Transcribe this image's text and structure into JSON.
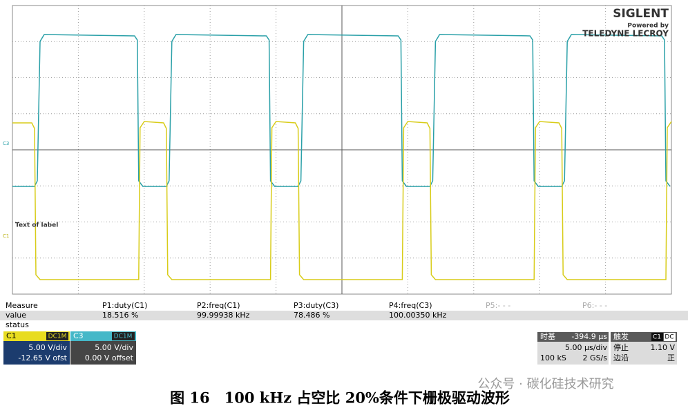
{
  "logo": {
    "brand": "SIGLENT",
    "powered": "Powered by",
    "partner": "TELEDYNE LECROY"
  },
  "markers": {
    "c3": "C3",
    "c1": "C1",
    "label": "Text of label"
  },
  "measure": {
    "title": "Measure",
    "params": [
      "P1:duty(C1)",
      "P2:freq(C1)",
      "P3:duty(C3)",
      "P4:freq(C3)",
      "P5:- - -",
      "P6:- - -"
    ],
    "value_label": "value",
    "values": [
      "18.516 %",
      "99.99938 kHz",
      "78.486 %",
      "100.00350 kHz"
    ],
    "status_label": "status"
  },
  "channels": [
    {
      "name": "C1",
      "coupling": "DC1M",
      "scale": "5.00 V/div",
      "offset": "-12.65 V ofst"
    },
    {
      "name": "C3",
      "coupling": "DC1M",
      "scale": "5.00 V/div",
      "offset": "0.00 V offset"
    }
  ],
  "timebase": {
    "label": "时基",
    "delay": "-394.9 µs",
    "scale": "5.00 µs/div",
    "samples": "100 kS",
    "rate": "2 GS/s"
  },
  "trigger": {
    "label": "触发",
    "source": "C1",
    "coupling": "DC",
    "state_label": "停止",
    "level": "1.10 V",
    "edge_label": "边沿",
    "edge": "正"
  },
  "caption": "图 16　100 kHz 占空比 20%条件下栅极驱动波形",
  "watermark": "公众号 · 碳化硅技术研究"
}
